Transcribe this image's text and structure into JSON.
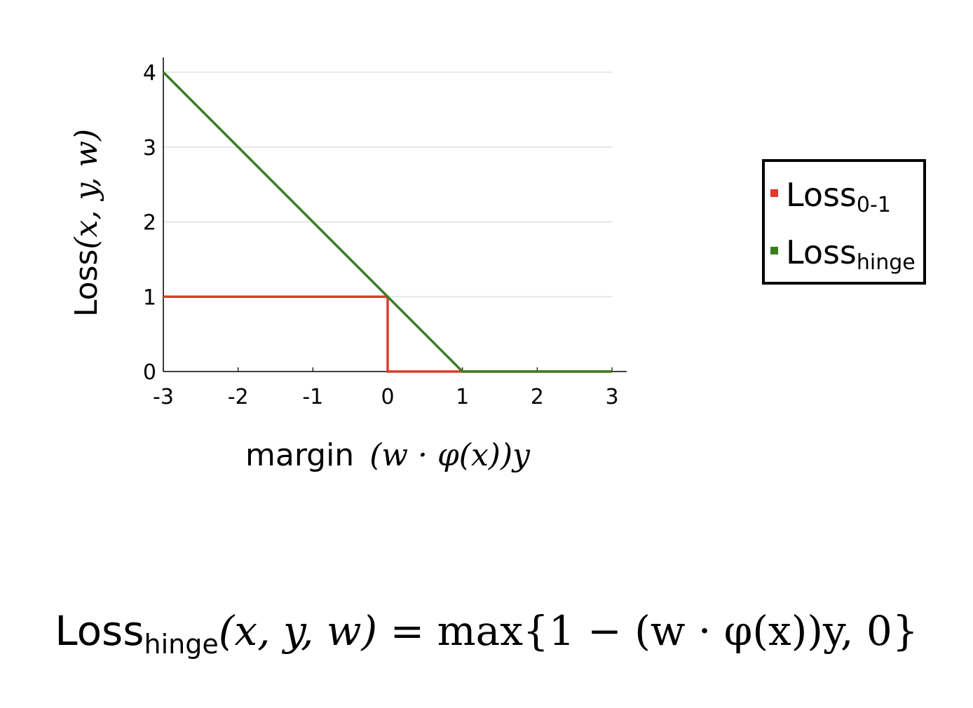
{
  "chart_data": {
    "type": "line",
    "xlabel_text": "margin",
    "xlabel_math": "(w · φ(x))y",
    "ylabel_text": "Loss",
    "ylabel_math": "(x, y, w)",
    "xlim": [
      -3,
      3
    ],
    "ylim": [
      0,
      4
    ],
    "xticks": [
      "-3",
      "-2",
      "-1",
      "0",
      "1",
      "2",
      "3"
    ],
    "yticks": [
      "0",
      "1",
      "2",
      "3",
      "4"
    ],
    "grid": "horizontal",
    "legend_position": "right",
    "series": [
      {
        "name": "Loss",
        "name_sub": "0-1",
        "color": "#e03a2a",
        "x": [
          -3,
          0,
          0,
          3
        ],
        "y": [
          1,
          1,
          0,
          0
        ]
      },
      {
        "name": "Loss",
        "name_sub": "hinge",
        "color": "#3a7d22",
        "x": [
          -3,
          1,
          3
        ],
        "y": [
          4,
          0,
          0
        ]
      }
    ]
  },
  "formula": {
    "lhs_word": "Loss",
    "lhs_sub": "hinge",
    "args": "(x, y, w)",
    "rhs": "= max{1 − (w · φ(x))y, 0}"
  }
}
